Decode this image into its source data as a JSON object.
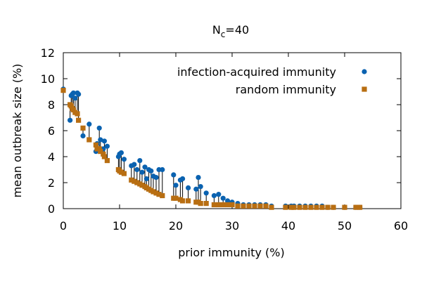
{
  "chart_data": {
    "type": "scatter",
    "title": "N",
    "title_subscript": "c",
    "title_suffix": "=40",
    "xlabel": "prior immunity (%)",
    "ylabel": "mean outbreak size (%)",
    "xlim": [
      0,
      60
    ],
    "ylim": [
      0,
      12
    ],
    "xticks": [
      0,
      10,
      20,
      30,
      40,
      50,
      60
    ],
    "yticks": [
      0,
      2,
      4,
      6,
      8,
      10,
      12
    ],
    "legend_position": "top-right",
    "drop_lines": true,
    "series": [
      {
        "name": "infection-acquired immunity",
        "marker": "circle",
        "color": "#0a62b0",
        "points": [
          [
            0,
            9.2
          ],
          [
            1.2,
            6.8
          ],
          [
            1.4,
            8.7
          ],
          [
            1.6,
            8.8
          ],
          [
            1.8,
            8.9
          ],
          [
            2.1,
            8.5
          ],
          [
            2.5,
            8.9
          ],
          [
            2.7,
            8.8
          ],
          [
            3.5,
            5.6
          ],
          [
            4.6,
            6.5
          ],
          [
            5.8,
            4.4
          ],
          [
            6.0,
            5.0
          ],
          [
            6.4,
            6.2
          ],
          [
            6.6,
            5.3
          ],
          [
            7.1,
            4.6
          ],
          [
            7.3,
            5.2
          ],
          [
            7.8,
            4.8
          ],
          [
            9.8,
            4.0
          ],
          [
            10.0,
            4.2
          ],
          [
            10.3,
            4.3
          ],
          [
            10.8,
            3.8
          ],
          [
            12.1,
            3.3
          ],
          [
            12.6,
            3.4
          ],
          [
            13.1,
            3.0
          ],
          [
            13.6,
            3.7
          ],
          [
            14.0,
            2.8
          ],
          [
            14.5,
            3.2
          ],
          [
            14.8,
            2.3
          ],
          [
            15.2,
            3.0
          ],
          [
            15.6,
            2.9
          ],
          [
            16.0,
            2.5
          ],
          [
            16.5,
            2.4
          ],
          [
            17.0,
            3.0
          ],
          [
            17.6,
            3.0
          ],
          [
            19.6,
            2.6
          ],
          [
            20.0,
            1.8
          ],
          [
            20.8,
            2.2
          ],
          [
            21.2,
            2.3
          ],
          [
            22.2,
            1.6
          ],
          [
            23.6,
            1.5
          ],
          [
            24.0,
            2.4
          ],
          [
            24.4,
            1.7
          ],
          [
            25.4,
            1.2
          ],
          [
            26.8,
            1.0
          ],
          [
            27.6,
            1.1
          ],
          [
            28.4,
            0.8
          ],
          [
            29.2,
            0.6
          ],
          [
            30.0,
            0.5
          ],
          [
            31.0,
            0.4
          ],
          [
            32.0,
            0.3
          ],
          [
            33.0,
            0.3
          ],
          [
            34.0,
            0.3
          ],
          [
            35.0,
            0.3
          ],
          [
            36.0,
            0.3
          ],
          [
            37.0,
            0.2
          ],
          [
            39.5,
            0.2
          ],
          [
            40.5,
            0.2
          ],
          [
            41.0,
            0.2
          ],
          [
            42.0,
            0.2
          ],
          [
            43.0,
            0.2
          ],
          [
            44.0,
            0.2
          ],
          [
            45.0,
            0.2
          ],
          [
            46.0,
            0.2
          ],
          [
            47.0,
            0.1
          ],
          [
            48.0,
            0.1
          ],
          [
            50.0,
            0.1
          ],
          [
            52.0,
            0.1
          ],
          [
            52.7,
            0.1
          ]
        ]
      },
      {
        "name": "random immunity",
        "marker": "square",
        "color": "#b86e12",
        "points": [
          [
            0,
            9.1
          ],
          [
            1.2,
            8.0
          ],
          [
            1.4,
            7.9
          ],
          [
            1.6,
            7.7
          ],
          [
            1.8,
            7.6
          ],
          [
            2.1,
            7.4
          ],
          [
            2.5,
            7.3
          ],
          [
            2.7,
            6.8
          ],
          [
            3.5,
            6.2
          ],
          [
            4.6,
            5.3
          ],
          [
            5.8,
            4.9
          ],
          [
            6.0,
            4.6
          ],
          [
            6.4,
            4.6
          ],
          [
            6.6,
            4.4
          ],
          [
            7.1,
            4.2
          ],
          [
            7.3,
            4.0
          ],
          [
            7.8,
            3.7
          ],
          [
            9.8,
            3.0
          ],
          [
            10.0,
            2.9
          ],
          [
            10.3,
            2.8
          ],
          [
            10.8,
            2.7
          ],
          [
            12.1,
            2.2
          ],
          [
            12.6,
            2.1
          ],
          [
            13.1,
            2.0
          ],
          [
            13.6,
            1.9
          ],
          [
            14.0,
            1.8
          ],
          [
            14.5,
            1.7
          ],
          [
            14.8,
            1.6
          ],
          [
            15.2,
            1.5
          ],
          [
            15.6,
            1.4
          ],
          [
            16.0,
            1.3
          ],
          [
            16.5,
            1.2
          ],
          [
            17.0,
            1.1
          ],
          [
            17.6,
            1.0
          ],
          [
            19.6,
            0.8
          ],
          [
            20.0,
            0.8
          ],
          [
            20.8,
            0.7
          ],
          [
            21.2,
            0.6
          ],
          [
            22.2,
            0.6
          ],
          [
            23.6,
            0.5
          ],
          [
            24.0,
            0.5
          ],
          [
            24.4,
            0.4
          ],
          [
            25.4,
            0.4
          ],
          [
            26.8,
            0.3
          ],
          [
            27.6,
            0.3
          ],
          [
            28.4,
            0.3
          ],
          [
            29.2,
            0.3
          ],
          [
            30.0,
            0.3
          ],
          [
            31.0,
            0.2
          ],
          [
            32.0,
            0.2
          ],
          [
            33.0,
            0.2
          ],
          [
            34.0,
            0.2
          ],
          [
            35.0,
            0.2
          ],
          [
            36.0,
            0.2
          ],
          [
            37.0,
            0.1
          ],
          [
            39.5,
            0.1
          ],
          [
            40.5,
            0.1
          ],
          [
            41.0,
            0.1
          ],
          [
            42.0,
            0.1
          ],
          [
            43.0,
            0.1
          ],
          [
            44.0,
            0.1
          ],
          [
            45.0,
            0.1
          ],
          [
            46.0,
            0.1
          ],
          [
            47.0,
            0.1
          ],
          [
            48.0,
            0.1
          ],
          [
            50.0,
            0.1
          ],
          [
            52.0,
            0.1
          ],
          [
            52.7,
            0.1
          ]
        ]
      }
    ]
  }
}
